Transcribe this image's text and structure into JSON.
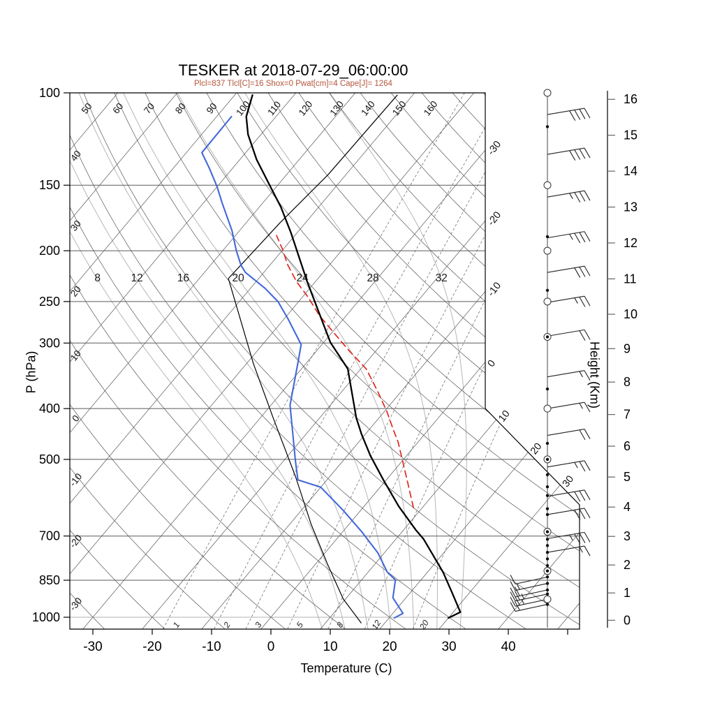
{
  "title": "TESKER at 2018-07-29_06:00:00",
  "subtitle": "Plcl=837 Tlcl[C]=16 Shox=0 Pwat[cm]=4 Cape[J]= 1264",
  "colors": {
    "temperature": "#000000",
    "dewpoint": "#4168d8",
    "parcel": "#e02820",
    "aux": "#000000",
    "subtitle": "#b5573c",
    "grid": "#5a5a5a",
    "moist": "#b3b3b3",
    "mixing": "#7a7a7a"
  },
  "axes": {
    "pressure": {
      "label": "P (hPa)",
      "ticks": [
        100,
        150,
        200,
        250,
        300,
        400,
        500,
        700,
        850,
        1000
      ],
      "range": [
        100,
        1050
      ]
    },
    "temperature": {
      "label": "Temperature (C)",
      "ticks": [
        -30,
        -20,
        -10,
        0,
        10,
        20,
        30,
        40
      ],
      "range": [
        -35,
        50
      ]
    },
    "height": {
      "label": "Height (Km)",
      "ticks": [
        0,
        1,
        2,
        3,
        4,
        5,
        6,
        7,
        8,
        9,
        10,
        11,
        12,
        13,
        14,
        15,
        16
      ]
    }
  },
  "chart_data": {
    "type": "line",
    "variant": "skew-t-log-p",
    "grid": "on",
    "isotherm_labels_right": [
      -30,
      -20,
      -10,
      0,
      10,
      20,
      30
    ],
    "isotherm_step_c": 10,
    "dry_adiabat_labels_top": [
      50,
      60,
      70,
      80,
      90,
      100,
      110,
      120,
      130,
      140,
      150,
      160
    ],
    "dry_adiabat_labels_left": [
      40,
      30,
      20,
      10,
      0,
      -10,
      -20,
      -30
    ],
    "moist_adiabat_labels": [
      8,
      12,
      16,
      20,
      24,
      28,
      32
    ],
    "mixing_ratio_labels": [
      1,
      2,
      3,
      5,
      8,
      12,
      20
    ],
    "series": [
      {
        "name": "temperature",
        "units": "p_hPa,T_C",
        "points": [
          [
            1003,
            30.0
          ],
          [
            978,
            31.2
          ],
          [
            895,
            26.9
          ],
          [
            820,
            22.6
          ],
          [
            710,
            14.7
          ],
          [
            681,
            12.0
          ],
          [
            614,
            5.8
          ],
          [
            547,
            -0.5
          ],
          [
            492,
            -6.1
          ],
          [
            448,
            -10.6
          ],
          [
            417,
            -13.8
          ],
          [
            336,
            -22.2
          ],
          [
            299,
            -28.9
          ],
          [
            262,
            -35.1
          ],
          [
            229,
            -41.4
          ],
          [
            185,
            -51.0
          ],
          [
            165,
            -56.4
          ],
          [
            149,
            -61.7
          ],
          [
            134,
            -67.2
          ],
          [
            120,
            -72.2
          ],
          [
            111,
            -75.0
          ],
          [
            101,
            -77.0
          ]
        ]
      },
      {
        "name": "dewpoint",
        "units": "p_hPa,Td_C",
        "points": [
          [
            1003,
            20.9
          ],
          [
            983,
            21.7
          ],
          [
            918,
            17.8
          ],
          [
            849,
            15.7
          ],
          [
            820,
            13.2
          ],
          [
            755,
            9.0
          ],
          [
            687,
            3.2
          ],
          [
            625,
            -3.0
          ],
          [
            565,
            -10.0
          ],
          [
            547,
            -14.9
          ],
          [
            502,
            -18.1
          ],
          [
            394,
            -26.8
          ],
          [
            328,
            -31.4
          ],
          [
            302,
            -33.5
          ],
          [
            270,
            -39.3
          ],
          [
            250,
            -43.5
          ],
          [
            236,
            -47.5
          ],
          [
            220,
            -53.1
          ],
          [
            213,
            -54.9
          ],
          [
            200,
            -57.7
          ],
          [
            183,
            -61.3
          ],
          [
            162,
            -66.9
          ],
          [
            151,
            -70.0
          ],
          [
            139,
            -74.0
          ],
          [
            130,
            -77.4
          ],
          [
            111,
            -77.5
          ]
        ]
      },
      {
        "name": "parcel",
        "dash": true,
        "units": "p_hPa,T_C",
        "points": [
          [
            618,
            8.5
          ],
          [
            547,
            3.5
          ],
          [
            463,
            -3.4
          ],
          [
            440,
            -5.8
          ],
          [
            405,
            -9.6
          ],
          [
            370,
            -14.1
          ],
          [
            336,
            -19.1
          ],
          [
            310,
            -24.6
          ],
          [
            287,
            -29.6
          ],
          [
            266,
            -34.5
          ],
          [
            245,
            -39.1
          ],
          [
            229,
            -43.2
          ],
          [
            213,
            -47.0
          ],
          [
            198,
            -50.3
          ],
          [
            187,
            -53.1
          ]
        ]
      },
      {
        "name": "aux",
        "units": "p_hPa,T_C",
        "points": [
          [
            1025,
            16.0
          ],
          [
            923,
            9.6
          ],
          [
            795,
            2.2
          ],
          [
            666,
            -6.3
          ],
          [
            540,
            -15.7
          ],
          [
            417,
            -27.8
          ],
          [
            328,
            -38.9
          ],
          [
            226,
            -55.1
          ],
          [
            177,
            -54.3
          ],
          [
            143,
            -53.0
          ],
          [
            101,
            -52.6
          ]
        ]
      }
    ],
    "wind_profile": {
      "markers": [
        {
          "p": 100,
          "t": "o"
        },
        {
          "p": 116,
          "t": "d"
        },
        {
          "p": 150,
          "t": "o"
        },
        {
          "p": 188,
          "t": "d"
        },
        {
          "p": 200,
          "t": "o"
        },
        {
          "p": 238,
          "t": "d"
        },
        {
          "p": 250,
          "t": "o"
        },
        {
          "p": 292,
          "t": "cd"
        },
        {
          "p": 367,
          "t": "d"
        },
        {
          "p": 400,
          "t": "o"
        },
        {
          "p": 466,
          "t": "d"
        },
        {
          "p": 500,
          "t": "cd"
        },
        {
          "p": 535,
          "t": "d"
        },
        {
          "p": 564,
          "t": "d"
        },
        {
          "p": 586,
          "t": "d"
        },
        {
          "p": 621,
          "t": "d"
        },
        {
          "p": 637,
          "t": "d"
        },
        {
          "p": 687,
          "t": "cd"
        },
        {
          "p": 710,
          "t": "d"
        },
        {
          "p": 730,
          "t": "d"
        },
        {
          "p": 752,
          "t": "d"
        },
        {
          "p": 774,
          "t": "d"
        },
        {
          "p": 797,
          "t": "d"
        },
        {
          "p": 816,
          "t": "cd"
        },
        {
          "p": 838,
          "t": "d"
        },
        {
          "p": 862,
          "t": "d"
        },
        {
          "p": 887,
          "t": "d"
        },
        {
          "p": 903,
          "t": "d"
        },
        {
          "p": 924,
          "t": "o"
        },
        {
          "p": 945,
          "t": "d"
        }
      ],
      "barbs": [
        {
          "p": 110,
          "kt": 40,
          "d": 1
        },
        {
          "p": 131,
          "kt": 40,
          "d": 1
        },
        {
          "p": 158,
          "kt": 35,
          "d": 1
        },
        {
          "p": 189,
          "kt": 35,
          "d": 1
        },
        {
          "p": 220,
          "kt": 30,
          "d": 1
        },
        {
          "p": 251,
          "kt": 25,
          "d": 1
        },
        {
          "p": 291,
          "kt": 20,
          "d": 1
        },
        {
          "p": 348,
          "kt": 15,
          "d": 1
        },
        {
          "p": 400,
          "kt": 15,
          "d": 1
        },
        {
          "p": 450,
          "kt": 20,
          "d": 1
        },
        {
          "p": 517,
          "kt": 25,
          "d": 1
        },
        {
          "p": 588,
          "kt": 30,
          "d": 1
        },
        {
          "p": 637,
          "kt": 30,
          "d": 1
        },
        {
          "p": 708,
          "kt": 35,
          "d": 1
        },
        {
          "p": 752,
          "kt": 15,
          "d": 1
        },
        {
          "p": 838,
          "kt": 10,
          "d": -1
        },
        {
          "p": 862,
          "kt": 15,
          "d": -1
        },
        {
          "p": 887,
          "kt": 20,
          "d": -1
        },
        {
          "p": 903,
          "kt": 25,
          "d": -1
        },
        {
          "p": 924,
          "kt": 25,
          "d": -1
        },
        {
          "p": 945,
          "kt": 20,
          "d": -1
        }
      ]
    }
  }
}
